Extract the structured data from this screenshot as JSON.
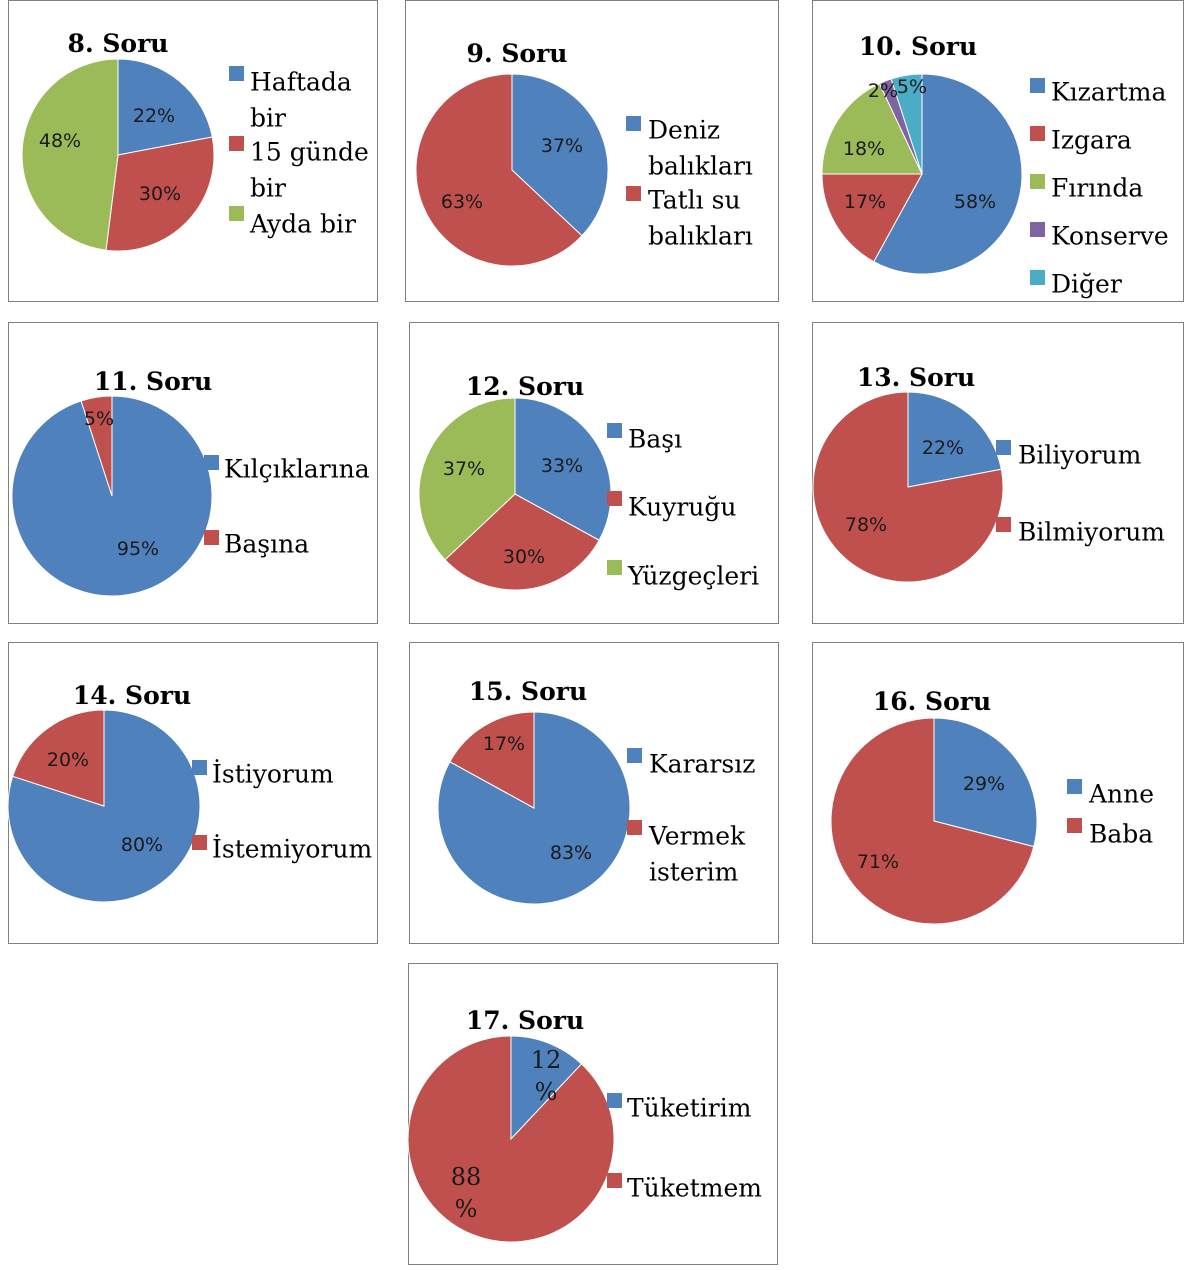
{
  "colors": {
    "blue": "#4F81BD",
    "red": "#C0504D",
    "green": "#9BBB59",
    "purple": "#8064A2",
    "cyan": "#4BACC6"
  },
  "chart_data": [
    {
      "type": "pie",
      "title": "8. Soru",
      "legend": [
        [
          "Haftada",
          "bir"
        ],
        [
          "15 günde",
          "bir"
        ],
        [
          "Ayda bir"
        ]
      ],
      "values": [
        22,
        30,
        48
      ],
      "labels": [
        [
          "22%"
        ],
        [
          "30%"
        ],
        [
          "48%"
        ]
      ]
    },
    {
      "type": "pie",
      "title": "9. Soru",
      "legend": [
        [
          "Deniz",
          "balıkları"
        ],
        [
          "Tatlı su",
          "balıkları"
        ]
      ],
      "values": [
        37,
        63
      ],
      "labels": [
        [
          "37%"
        ],
        [
          "63%"
        ]
      ]
    },
    {
      "type": "pie",
      "title": "10. Soru",
      "legend": [
        [
          "Kızartma"
        ],
        [
          "Izgara"
        ],
        [
          "Fırında"
        ],
        [
          "Konserve"
        ],
        [
          "Diğer"
        ]
      ],
      "values": [
        58,
        17,
        18,
        2,
        5
      ],
      "labels": [
        [
          "58%"
        ],
        [
          "17%"
        ],
        [
          "18%"
        ],
        [
          "2%"
        ],
        [
          "5%"
        ]
      ]
    },
    {
      "type": "pie",
      "title": "11. Soru",
      "legend": [
        [
          "Kılçıklarına"
        ],
        [
          "Başına"
        ]
      ],
      "values": [
        95,
        5
      ],
      "labels": [
        [
          "95%"
        ],
        [
          "5%"
        ]
      ]
    },
    {
      "type": "pie",
      "title": "12. Soru",
      "legend": [
        [
          "Başı"
        ],
        [
          "Kuyruğu"
        ],
        [
          "Yüzgeçleri"
        ]
      ],
      "values": [
        33,
        30,
        37
      ],
      "labels": [
        [
          "33%"
        ],
        [
          "30%"
        ],
        [
          "37%"
        ]
      ]
    },
    {
      "type": "pie",
      "title": "13. Soru",
      "legend": [
        [
          "Biliyorum"
        ],
        [
          "Bilmiyorum"
        ]
      ],
      "values": [
        22,
        78
      ],
      "labels": [
        [
          "22%"
        ],
        [
          "78%"
        ]
      ]
    },
    {
      "type": "pie",
      "title": "14. Soru",
      "legend": [
        [
          "İstiyorum"
        ],
        [
          "İstemiyorum"
        ]
      ],
      "values": [
        80,
        20
      ],
      "labels": [
        [
          "80%"
        ],
        [
          "20%"
        ]
      ]
    },
    {
      "type": "pie",
      "title": "15. Soru",
      "legend": [
        [
          "Kararsız"
        ],
        [
          "Vermek",
          "isterim"
        ]
      ],
      "values": [
        83,
        17
      ],
      "labels": [
        [
          "83%"
        ],
        [
          "17%"
        ]
      ]
    },
    {
      "type": "pie",
      "title": "16. Soru",
      "legend": [
        [
          "Anne"
        ],
        [
          "Baba"
        ]
      ],
      "values": [
        29,
        71
      ],
      "labels": [
        [
          "29%"
        ],
        [
          "71%"
        ]
      ]
    },
    {
      "type": "pie",
      "title": "17. Soru",
      "legend": [
        [
          "Tüketirim"
        ],
        [
          "Tüketmem"
        ]
      ],
      "values": [
        12,
        88
      ],
      "labels": [
        [
          "12",
          "%"
        ],
        [
          "88",
          "%"
        ]
      ]
    }
  ]
}
